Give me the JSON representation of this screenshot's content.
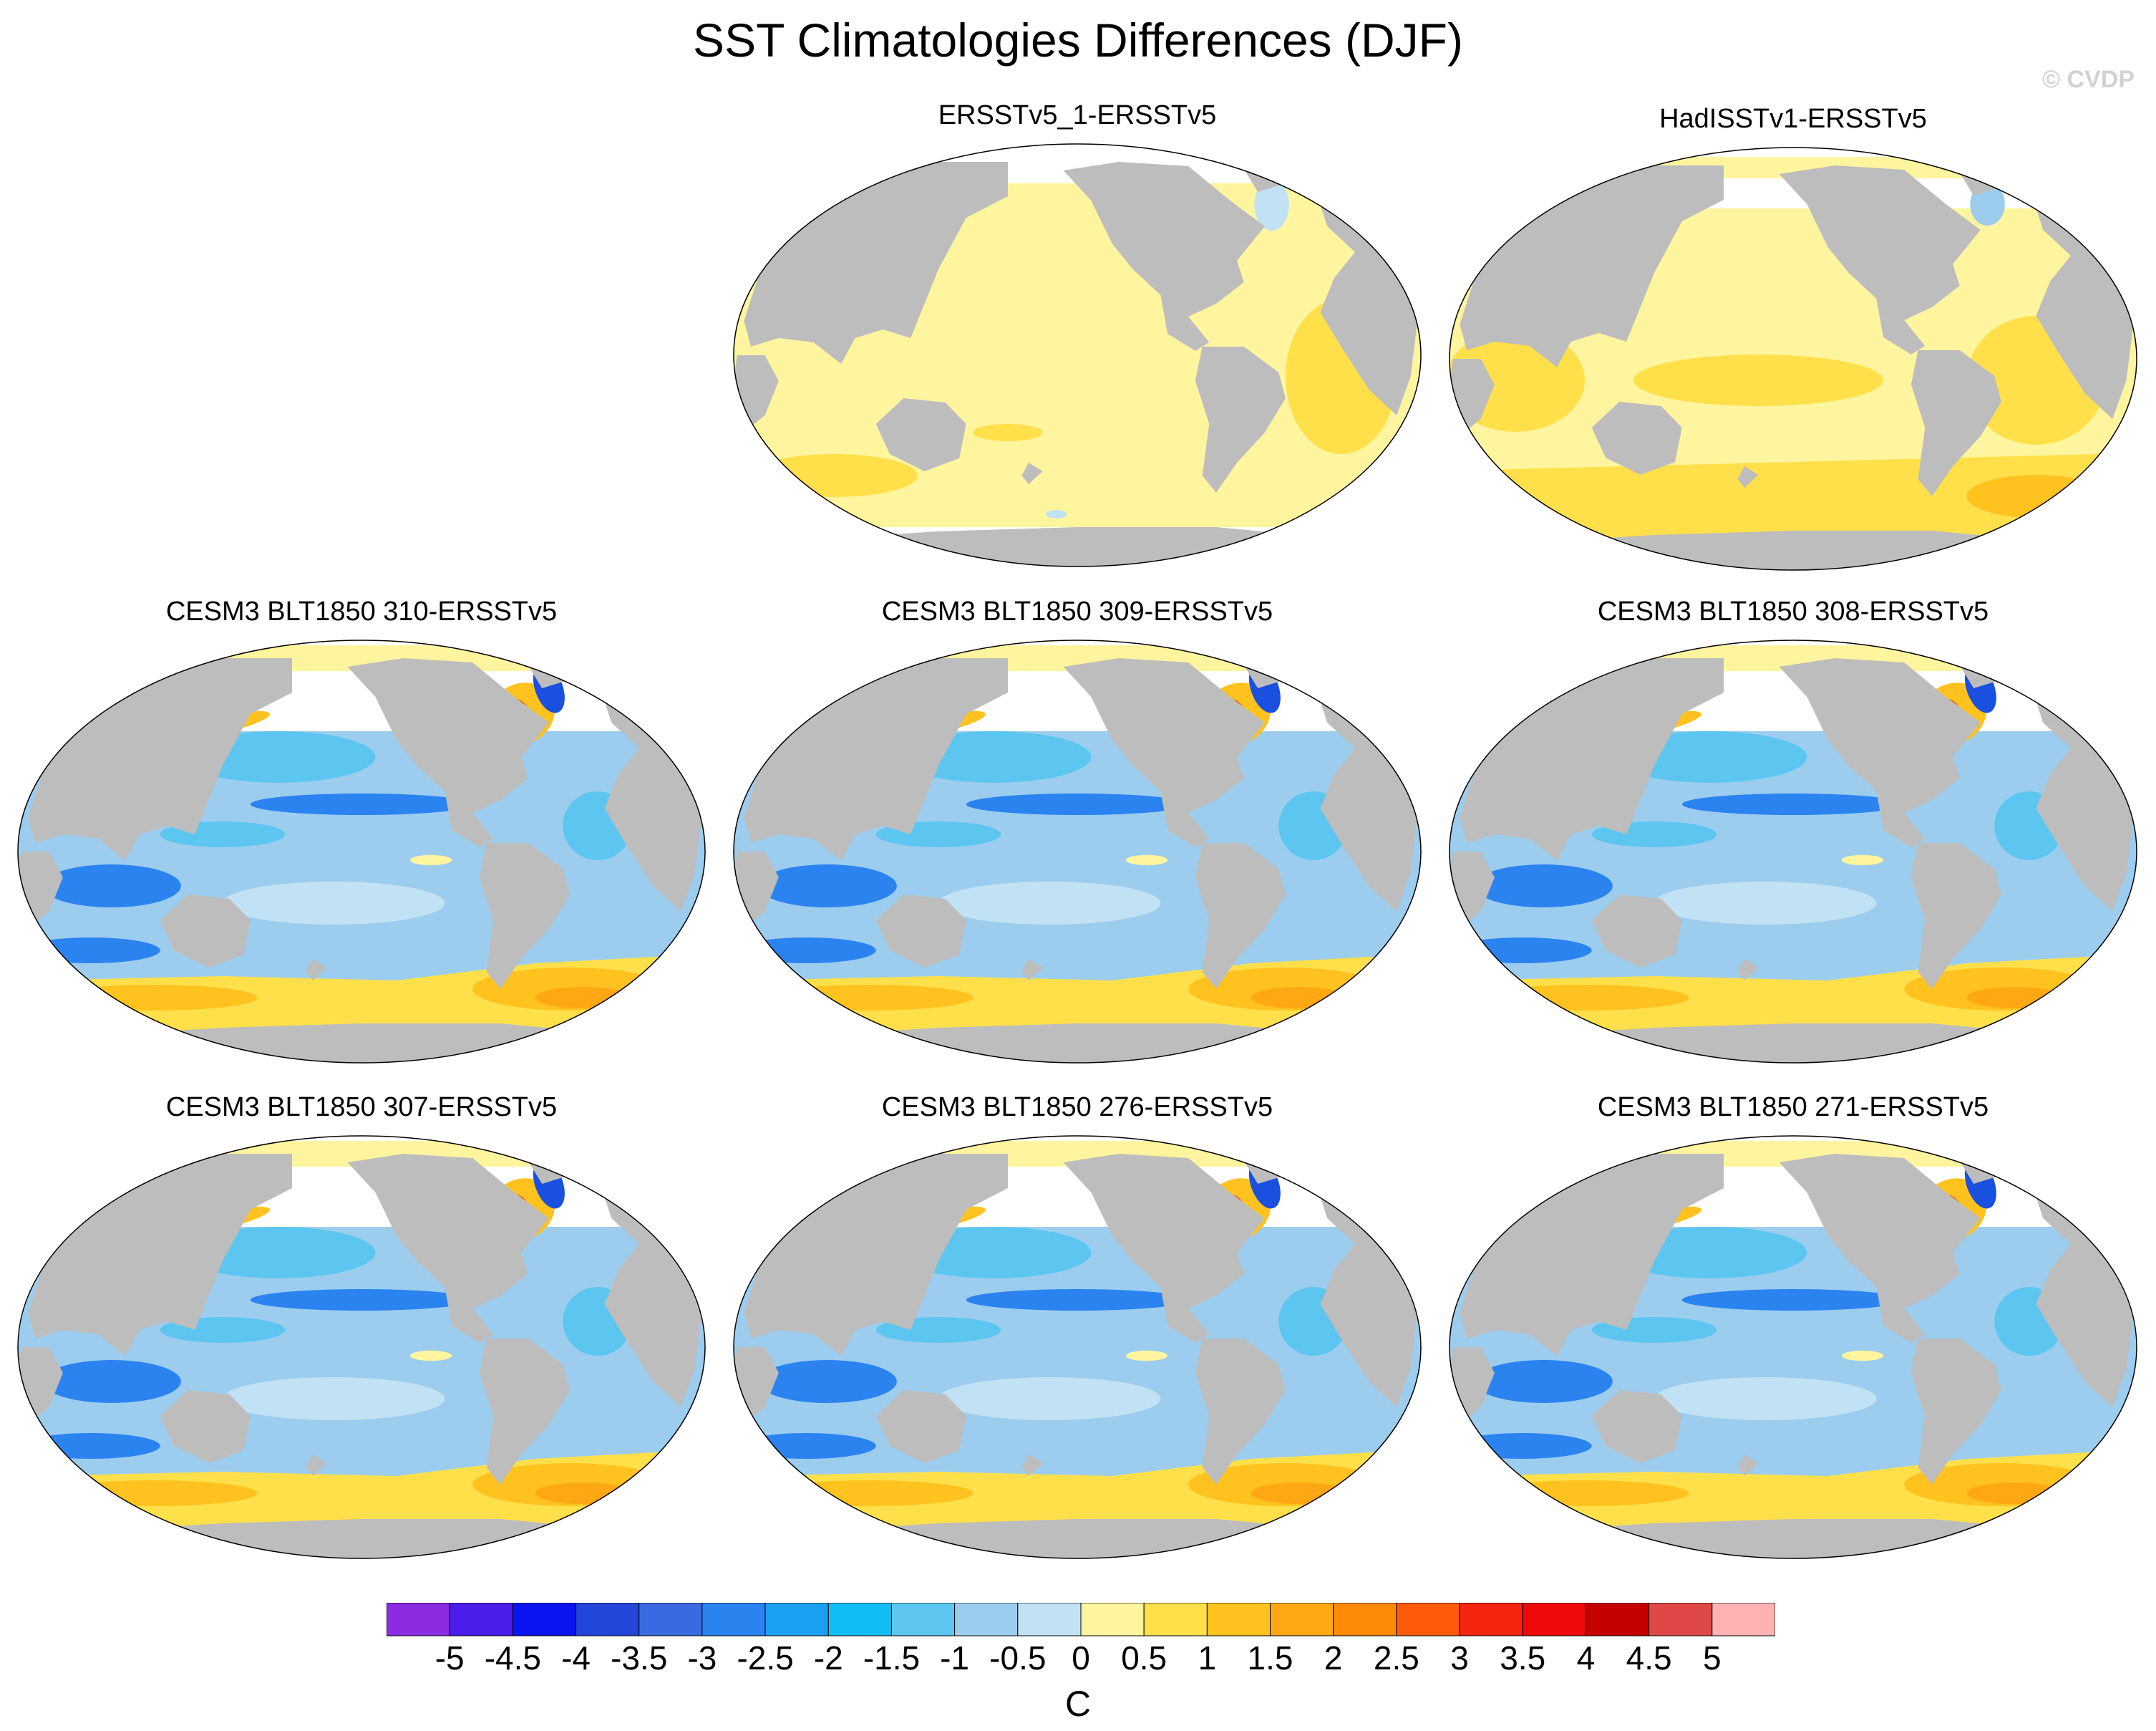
{
  "title": "SST Climatologies Differences (DJF)",
  "credit": "© CVDP",
  "panels": [
    {
      "title": "ERSSTv5_1-ERSSTv5",
      "pattern": "small_warm"
    },
    {
      "title": "HadISSTv1-ERSSTv5",
      "pattern": "warm"
    },
    {
      "title": "CESM3 BLT1850 310-ERSSTv5",
      "pattern": "model"
    },
    {
      "title": "CESM3 BLT1850 309-ERSSTv5",
      "pattern": "model"
    },
    {
      "title": "CESM3 BLT1850 308-ERSSTv5",
      "pattern": "model"
    },
    {
      "title": "CESM3 BLT1850 307-ERSSTv5",
      "pattern": "model"
    },
    {
      "title": "CESM3 BLT1850 276-ERSSTv5",
      "pattern": "model"
    },
    {
      "title": "CESM3 BLT1850 271-ERSSTv5",
      "pattern": "model"
    }
  ],
  "colorbar": {
    "labels": [
      "-5",
      "-4.5",
      "-4",
      "-3.5",
      "-3",
      "-2.5",
      "-2",
      "-1.5",
      "-1",
      "-0.5",
      "0",
      "0.5",
      "1",
      "1.5",
      "2",
      "2.5",
      "3",
      "3.5",
      "4",
      "4.5",
      "5"
    ],
    "colors": [
      "#8b2be2",
      "#4b1de8",
      "#0a14f0",
      "#2345d8",
      "#3a6ae0",
      "#2b83f0",
      "#1aa0f0",
      "#11bdf5",
      "#5cc6f0",
      "#9ccdee",
      "#c1e2f4",
      "#fff59e",
      "#ffe04a",
      "#ffc21e",
      "#ffa814",
      "#ff8a08",
      "#ff5a0a",
      "#f5250f",
      "#ee0a0a",
      "#c40000",
      "#e04848",
      "#ffb2b2"
    ],
    "units": "C"
  },
  "palette": {
    "land": "#bdbdbd",
    "neutral_warm": "#fff59e",
    "warm1": "#ffe04a",
    "warm2": "#ffc21e",
    "warm3": "#ffa814",
    "hot": "#ff3a10",
    "hotter": "#dd0000",
    "pink": "#ffb2b2",
    "cool1": "#c1e2f4",
    "cool2": "#9ccdee",
    "cool3": "#5cc6f0",
    "cool4": "#2b83f0",
    "cool5": "#1a50e0"
  }
}
